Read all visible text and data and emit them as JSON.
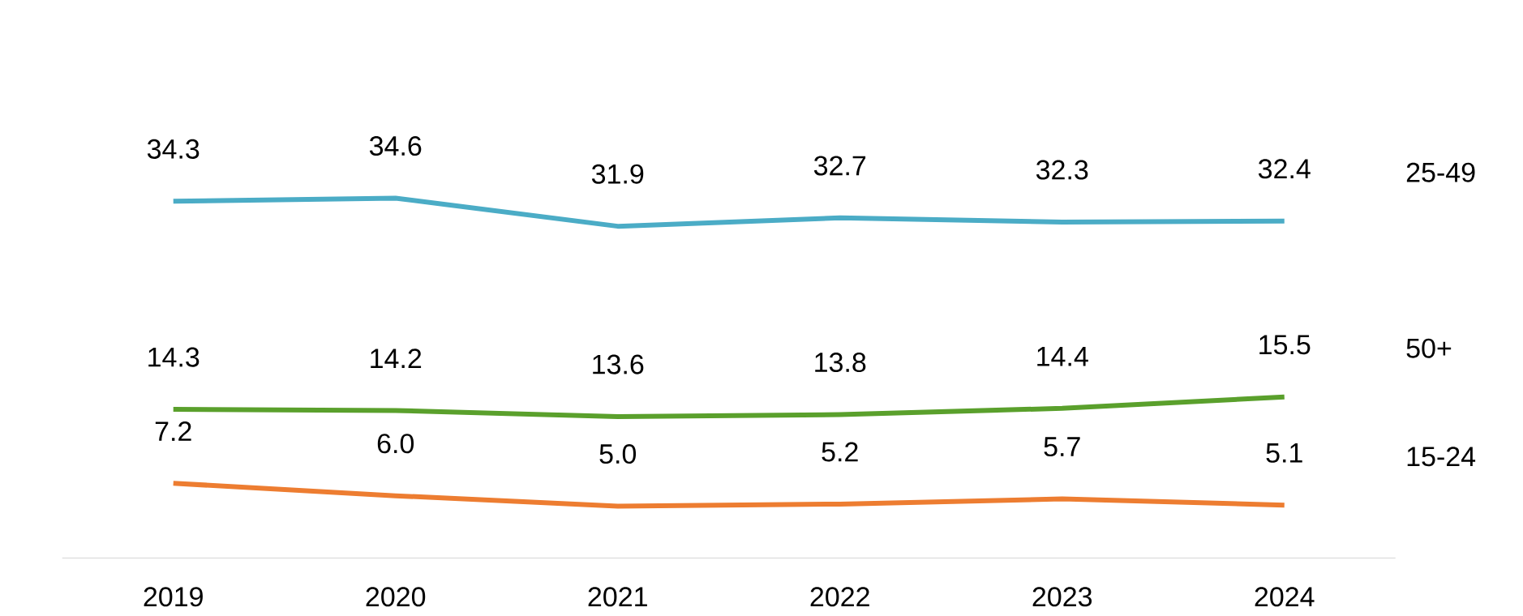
{
  "chart_data": {
    "type": "line",
    "categories": [
      "2019",
      "2020",
      "2021",
      "2022",
      "2023",
      "2024"
    ],
    "series": [
      {
        "name": "25-49",
        "color": "#4bacc6",
        "values": [
          34.3,
          34.6,
          31.9,
          32.7,
          32.3,
          32.4
        ],
        "value_labels": [
          "34.3",
          "34.6",
          "31.9",
          "32.7",
          "32.3",
          "32.4"
        ]
      },
      {
        "name": "50+",
        "color": "#5aa02c",
        "values": [
          14.3,
          14.2,
          13.6,
          13.8,
          14.4,
          15.5
        ],
        "value_labels": [
          "14.3",
          "14.2",
          "13.6",
          "13.8",
          "14.4",
          "15.5"
        ]
      },
      {
        "name": "15-24",
        "color": "#ed7d31",
        "values": [
          7.2,
          6.0,
          5.0,
          5.2,
          5.7,
          5.1
        ],
        "value_labels": [
          "7.2",
          "6.0",
          "5.0",
          "5.2",
          "5.7",
          "5.1"
        ]
      }
    ],
    "tick_labels": "x",
    "legend": false,
    "grid": false,
    "marker": "none",
    "line_style": "solid"
  }
}
